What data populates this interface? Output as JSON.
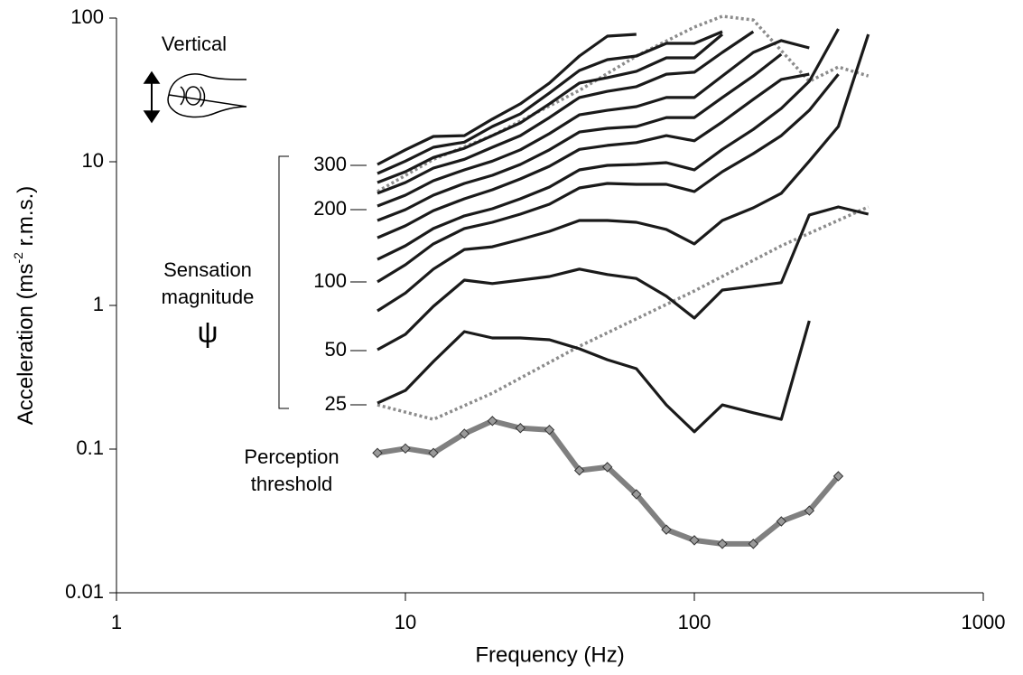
{
  "chart_data": {
    "type": "line",
    "x_label": "Frequency (Hz)",
    "y_label": [
      "Acceleration (ms",
      "-2",
      " r.m.s.)"
    ],
    "log_x": true,
    "log_y": true,
    "xlim": [
      1,
      1000
    ],
    "xticks": [
      1,
      10,
      100,
      1000
    ],
    "ylim": [
      0.01,
      100
    ],
    "yticks": [
      0.01,
      0.1,
      1,
      10,
      100
    ],
    "x": [
      8,
      10,
      12.5,
      16,
      20,
      25,
      31.5,
      40,
      50,
      63,
      80,
      100,
      125,
      160,
      200,
      250,
      315,
      400
    ],
    "series": [
      {
        "color": "#808080",
        "style": "thick",
        "marker": "diamond",
        "values": [
          0.094,
          0.101,
          0.094,
          0.128,
          0.157,
          0.14,
          0.136,
          0.071,
          0.075,
          0.0485,
          0.0275,
          0.0232,
          0.0219,
          0.0219,
          0.0314,
          0.0373,
          0.0648,
          null
        ]
      },
      {
        "color": "#8c8c8c",
        "style": "dotted",
        "x": [
          8,
          12.5,
          20,
          40,
          100,
          200,
          400
        ],
        "values": [
          0.203,
          0.161,
          0.245,
          0.52,
          1.26,
          2.6,
          4.85
        ]
      },
      {
        "color": "#8c8c8c",
        "style": "dotted",
        "x": [
          8,
          12.5,
          20,
          40,
          63,
          100,
          125,
          160,
          250,
          315,
          400
        ],
        "values": [
          6.2,
          10.4,
          15.2,
          31.4,
          54.4,
          86.5,
          103,
          97,
          36.3,
          45.7,
          39.5
        ]
      },
      {
        "color": "#1a1a1a",
        "style": "solid",
        "values": [
          0.209,
          0.256,
          0.407,
          0.657,
          0.594,
          0.594,
          0.577,
          0.499,
          0.419,
          0.363,
          0.203,
          0.132,
          0.203,
          0.179,
          0.161,
          0.782,
          null,
          null
        ]
      },
      {
        "color": "#1a1a1a",
        "style": "solid",
        "values": [
          0.492,
          0.629,
          0.986,
          1.5,
          1.42,
          1.5,
          1.59,
          1.79,
          1.64,
          1.54,
          1.16,
          0.817,
          1.28,
          1.36,
          1.44,
          4.26,
          4.85,
          4.32
        ]
      },
      {
        "color": "#1a1a1a",
        "style": "solid",
        "values": [
          0.917,
          1.22,
          1.79,
          2.45,
          2.56,
          2.88,
          3.28,
          3.9,
          3.9,
          3.79,
          3.38,
          2.68,
          3.9,
          4.78,
          6.03,
          10.1,
          17.6,
          77.1
        ]
      },
      {
        "color": "#1a1a1a",
        "style": "solid",
        "values": [
          1.46,
          1.92,
          2.68,
          3.43,
          3.79,
          4.32,
          5.06,
          6.57,
          7.06,
          6.96,
          6.96,
          6.2,
          8.53,
          11.4,
          15.2,
          22.8,
          40.7,
          null
        ]
      },
      {
        "color": "#1a1a1a",
        "style": "solid",
        "values": [
          2.09,
          2.6,
          3.43,
          4.2,
          4.71,
          5.52,
          6.67,
          8.78,
          9.44,
          9.57,
          9.86,
          8.78,
          12.2,
          16.8,
          23.5,
          36.3,
          84.1,
          null
        ]
      },
      {
        "color": "#1a1a1a",
        "style": "solid",
        "values": [
          2.96,
          3.58,
          4.57,
          5.52,
          6.38,
          7.6,
          9.3,
          12.2,
          13.0,
          13.6,
          15.2,
          14.0,
          18.9,
          27.2,
          37.4,
          40.7,
          null,
          null
        ]
      },
      {
        "color": "#1a1a1a",
        "style": "solid",
        "values": [
          3.9,
          4.64,
          5.85,
          7.06,
          8.05,
          9.57,
          12.1,
          16.1,
          17.1,
          17.6,
          20.3,
          20.3,
          28.0,
          39.5,
          56.0,
          null,
          null,
          null
        ]
      },
      {
        "color": "#1a1a1a",
        "style": "solid",
        "values": [
          4.92,
          5.85,
          7.38,
          8.78,
          10.1,
          12.1,
          15.7,
          21.2,
          22.8,
          24.2,
          28.0,
          28.0,
          39.5,
          57.7,
          69.7,
          62.0,
          null,
          null
        ]
      },
      {
        "color": "#1a1a1a",
        "style": "solid",
        "values": [
          6.03,
          7.17,
          9.03,
          10.4,
          12.6,
          15.2,
          20.3,
          28.0,
          30.9,
          33.3,
          40.7,
          42.0,
          57.7,
          80.5,
          null,
          null,
          null,
          null
        ]
      },
      {
        "color": "#1a1a1a",
        "style": "solid",
        "values": [
          7.17,
          8.53,
          10.7,
          12.4,
          15.2,
          18.6,
          25.3,
          35.3,
          38.5,
          42.6,
          52.9,
          52.9,
          77.1,
          null,
          null,
          null,
          null,
          null
        ]
      },
      {
        "color": "#1a1a1a",
        "style": "solid",
        "values": [
          8.28,
          10.1,
          12.6,
          13.7,
          17.6,
          21.5,
          30.1,
          43.2,
          51.4,
          54.4,
          66.7,
          66.7,
          80.5,
          null,
          null,
          null,
          null,
          null
        ]
      },
      {
        "color": "#1a1a1a",
        "style": "solid",
        "values": [
          9.57,
          12.1,
          15.0,
          15.2,
          19.8,
          25.3,
          35.3,
          54.4,
          74.8,
          77.1,
          null,
          null,
          null,
          null,
          null,
          null,
          null,
          null
        ]
      }
    ],
    "annotations": {
      "vertical": "Vertical",
      "sensation": [
        "Sensation",
        "magnitude",
        "ψ"
      ],
      "magnitude_levels": [
        "300",
        "200",
        "100",
        "50",
        "25"
      ],
      "threshold": [
        "Perception",
        "threshold"
      ]
    }
  }
}
